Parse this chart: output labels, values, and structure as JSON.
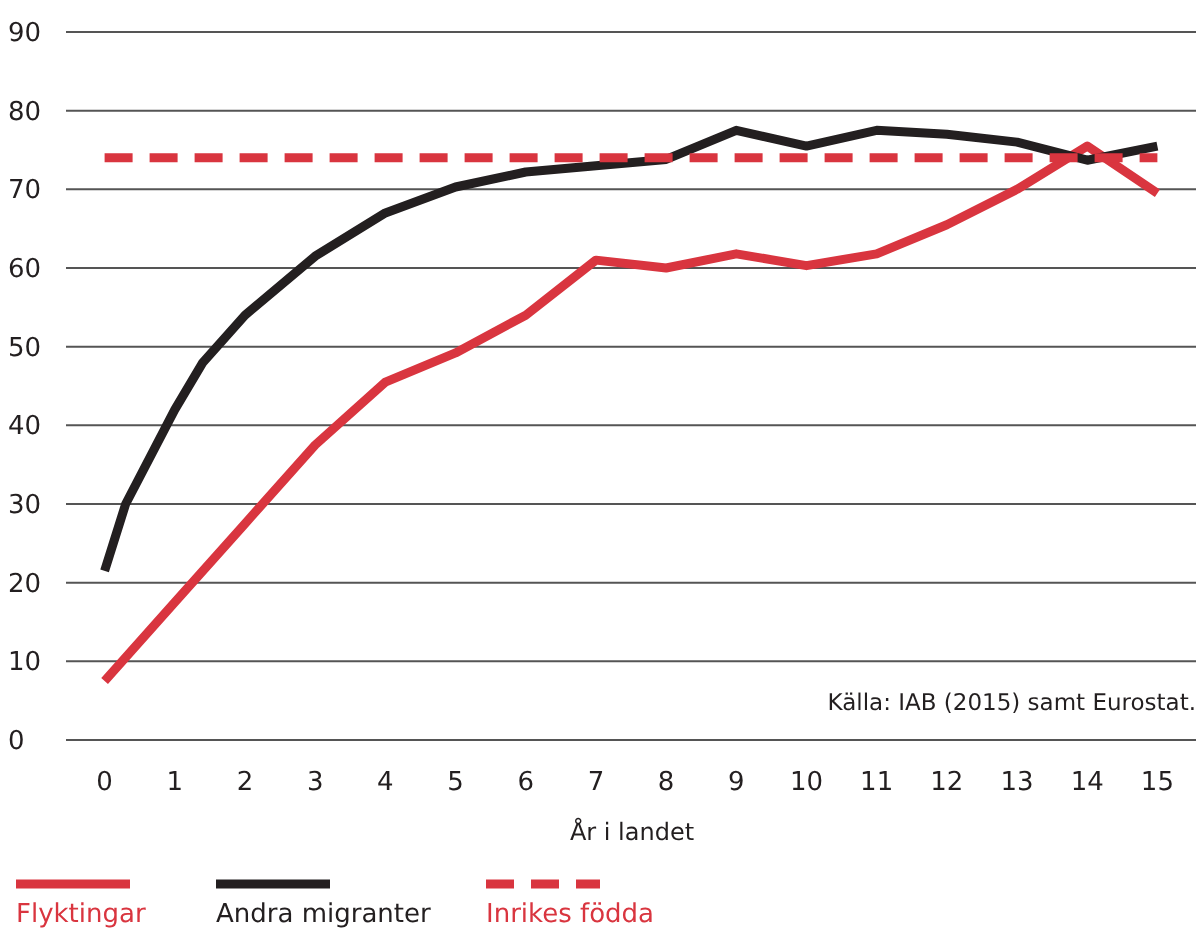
{
  "chart_data": {
    "type": "line",
    "xlabel": "År i landet",
    "annotations": [
      "Källa: IAB (2015) samt Eurostat."
    ],
    "xlim": [
      -0.55,
      15.55
    ],
    "xticks": [
      0,
      1,
      2,
      3,
      4,
      5,
      6,
      7,
      8,
      9,
      10,
      11,
      12,
      13,
      14,
      15
    ],
    "ylim": [
      0,
      90
    ],
    "yticks": [
      0,
      10,
      20,
      30,
      40,
      50,
      60,
      70,
      80,
      90
    ],
    "grid": "y",
    "legend": "bottom left",
    "series": [
      {
        "name": "Flyktingar",
        "color": "#d9353f",
        "line_style": "solid",
        "x": [
          0,
          1,
          2,
          3,
          4,
          5,
          6,
          7,
          8,
          9,
          10,
          11,
          12,
          13,
          14,
          15
        ],
        "values": [
          7.5,
          17.5,
          27.5,
          37.5,
          45.5,
          49.2,
          54,
          61,
          60,
          61.8,
          60.3,
          61.8,
          65.5,
          70,
          75.5,
          69.5
        ]
      },
      {
        "name": "Andra migranter",
        "color": "#231f20",
        "line_style": "solid",
        "x": [
          0,
          0.3,
          1,
          1.4,
          2,
          3,
          4,
          5,
          6,
          7,
          8,
          9,
          10,
          11,
          12,
          13,
          14,
          15
        ],
        "values": [
          21.5,
          30,
          42,
          48,
          54,
          61.5,
          67,
          70.3,
          72.2,
          73,
          73.8,
          77.5,
          75.5,
          77.5,
          77,
          76,
          73.7,
          75.5
        ]
      },
      {
        "name": "Inrikes födda",
        "color": "#d9353f",
        "line_style": "dashed",
        "x": [
          0,
          15
        ],
        "values": [
          74,
          74
        ]
      }
    ]
  }
}
